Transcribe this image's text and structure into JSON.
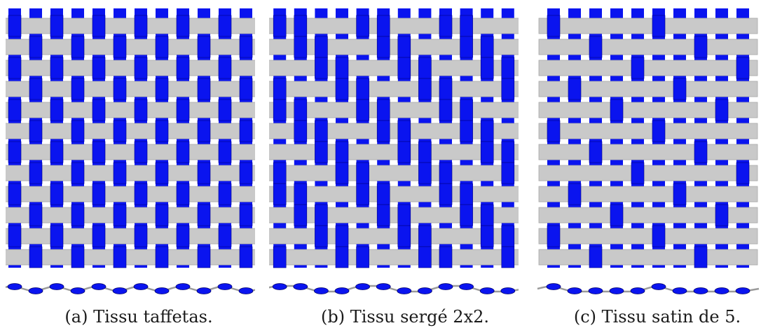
{
  "figure": {
    "panels": [
      {
        "id": "a",
        "caption": "(a) Tissu taffetas.",
        "pattern": "plain",
        "colors": {
          "warp": "#0a14ef",
          "weft": "#c9c9c9",
          "background": "#ffffff"
        }
      },
      {
        "id": "b",
        "caption": "(b) Tissu sergé 2x2.",
        "pattern": "twill-2x2",
        "colors": {
          "warp": "#0a14ef",
          "weft": "#c9c9c9",
          "background": "#ffffff"
        }
      },
      {
        "id": "c",
        "caption": "(c) Tissu satin de 5.",
        "pattern": "satin-5",
        "colors": {
          "warp": "#0a14ef",
          "weft": "#c9c9c9",
          "background": "#ffffff"
        }
      }
    ]
  }
}
